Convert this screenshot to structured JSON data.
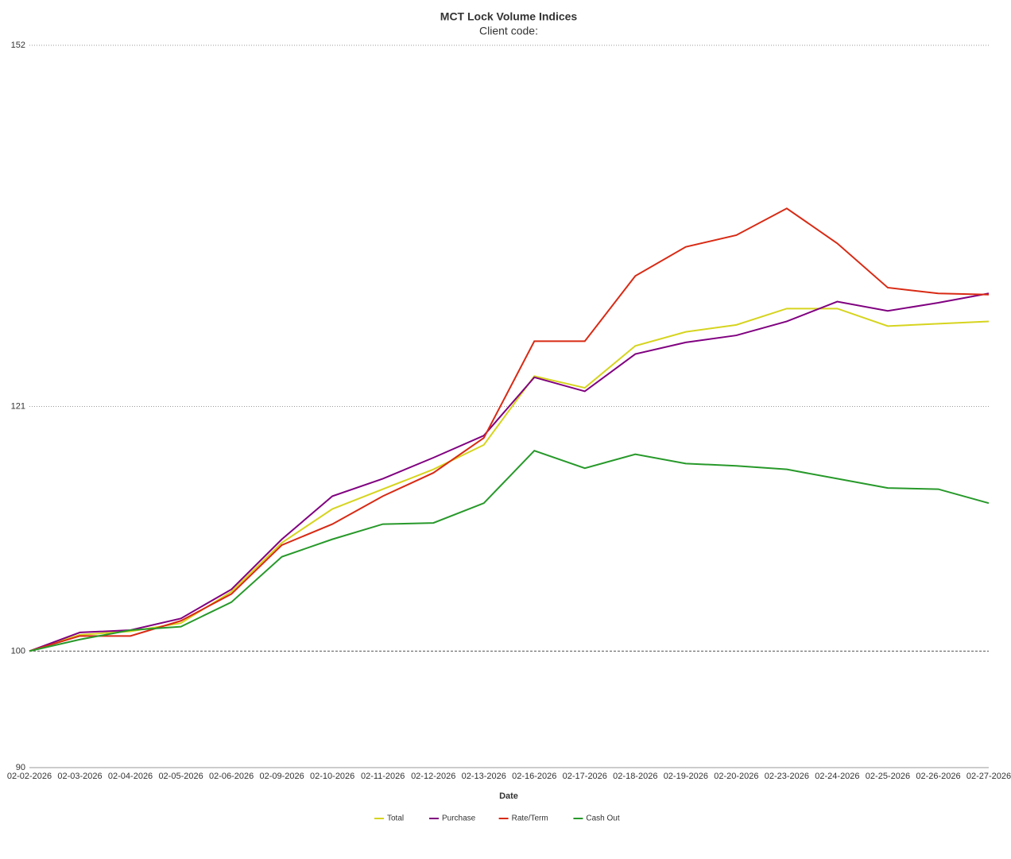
{
  "chart_data": {
    "type": "line",
    "title": "MCT Lock Volume Indices",
    "subtitle": "Client code:",
    "x_label": "Date",
    "categories": [
      "02-02-2026",
      "02-03-2026",
      "02-04-2026",
      "02-05-2026",
      "02-06-2026",
      "02-09-2026",
      "02-10-2026",
      "02-11-2026",
      "02-12-2026",
      "02-13-2026",
      "02-16-2026",
      "02-17-2026",
      "02-18-2026",
      "02-19-2026",
      "02-20-2026",
      "02-23-2026",
      "02-24-2026",
      "02-25-2026",
      "02-26-2026",
      "02-27-2026"
    ],
    "series": [
      {
        "name": "Total",
        "color": "#d6d41e",
        "values": [
          100,
          101.4,
          101.7,
          102.4,
          105.1,
          109.3,
          112.2,
          113.9,
          115.6,
          117.7,
          123.6,
          122.6,
          126.2,
          127.4,
          128.0,
          129.4,
          129.4,
          127.9,
          128.1,
          128.3
        ]
      },
      {
        "name": "Purchase",
        "color": "#800080",
        "values": [
          100,
          101.6,
          101.8,
          102.8,
          105.3,
          109.6,
          113.3,
          114.8,
          116.6,
          118.5,
          123.5,
          122.3,
          125.5,
          126.5,
          127.1,
          128.3,
          130.0,
          129.2,
          129.9,
          130.7
        ]
      },
      {
        "name": "Rate/Term",
        "color": "#d82a14",
        "values": [
          100,
          101.3,
          101.3,
          102.6,
          104.9,
          109.1,
          110.9,
          113.3,
          115.3,
          118.3,
          126.6,
          126.6,
          132.2,
          134.7,
          135.7,
          138.0,
          135.0,
          131.2,
          130.7,
          130.6
        ]
      },
      {
        "name": "Cash Out",
        "color": "#27992a",
        "values": [
          100,
          101.0,
          101.8,
          102.1,
          104.2,
          108.1,
          109.6,
          110.9,
          111.0,
          112.7,
          117.2,
          115.7,
          116.9,
          116.1,
          115.9,
          115.6,
          114.8,
          114.0,
          113.9,
          112.7
        ]
      }
    ],
    "ylim": [
      90,
      152
    ],
    "yticks": [
      90,
      100,
      121,
      152
    ],
    "grid": true,
    "legend": "bottom"
  }
}
